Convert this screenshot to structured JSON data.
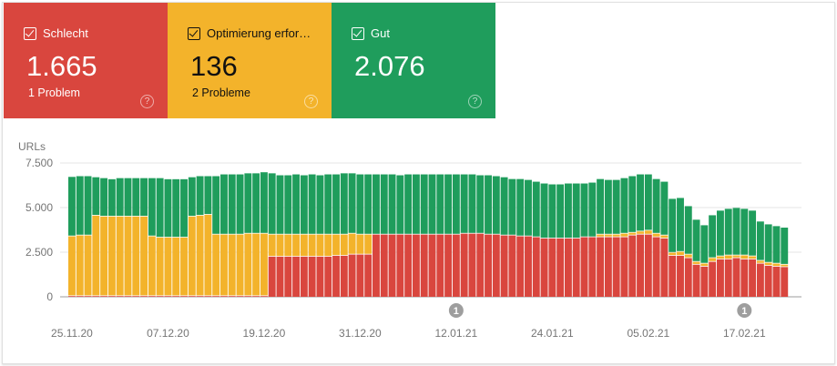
{
  "cards": [
    {
      "label": "Schlecht",
      "value": "1.665",
      "sub": "1 Problem",
      "checked": true,
      "color": "#d9463e",
      "text_color": "#ffffff",
      "help_icon": "help-circle-icon"
    },
    {
      "label": "Optimierung erfor…",
      "value": "136",
      "sub": "2 Probleme",
      "checked": true,
      "color": "#f3b32b",
      "text_color": "#111111",
      "help_icon": "help-circle-icon"
    },
    {
      "label": "Gut",
      "value": "2.076",
      "sub": "",
      "checked": true,
      "color": "#1f9d5c",
      "text_color": "#ffffff",
      "help_icon": "help-circle-icon"
    }
  ],
  "chart_data": {
    "type": "bar",
    "stacked": true,
    "ylabel": "URLs",
    "ylim": [
      0,
      7500
    ],
    "yticks": [
      {
        "v": 0,
        "label": "0"
      },
      {
        "v": 2500,
        "label": "2.500"
      },
      {
        "v": 5000,
        "label": "5.000"
      },
      {
        "v": 7500,
        "label": "7.500"
      }
    ],
    "xtick_labels": [
      "25.11.20",
      "07.12.20",
      "19.12.20",
      "31.12.20",
      "12.01.21",
      "24.01.21",
      "05.02.21",
      "17.02.21"
    ],
    "grid": true,
    "categories": [
      "25.11.20",
      "26.11.20",
      "27.11.20",
      "28.11.20",
      "29.11.20",
      "30.11.20",
      "01.12.20",
      "02.12.20",
      "03.12.20",
      "04.12.20",
      "05.12.20",
      "06.12.20",
      "07.12.20",
      "08.12.20",
      "09.12.20",
      "10.12.20",
      "11.12.20",
      "12.12.20",
      "13.12.20",
      "14.12.20",
      "15.12.20",
      "16.12.20",
      "17.12.20",
      "18.12.20",
      "19.12.20",
      "20.12.20",
      "21.12.20",
      "22.12.20",
      "23.12.20",
      "24.12.20",
      "25.12.20",
      "26.12.20",
      "27.12.20",
      "28.12.20",
      "29.12.20",
      "30.12.20",
      "31.12.20",
      "01.01.21",
      "02.01.21",
      "03.01.21",
      "04.01.21",
      "05.01.21",
      "06.01.21",
      "07.01.21",
      "08.01.21",
      "09.01.21",
      "10.01.21",
      "11.01.21",
      "12.01.21",
      "13.01.21",
      "14.01.21",
      "15.01.21",
      "16.01.21",
      "17.01.21",
      "18.01.21",
      "19.01.21",
      "20.01.21",
      "21.01.21",
      "22.01.21",
      "23.01.21",
      "24.01.21",
      "25.01.21",
      "26.01.21",
      "27.01.21",
      "28.01.21",
      "29.01.21",
      "30.01.21",
      "31.01.21",
      "01.02.21",
      "02.02.21",
      "03.02.21",
      "04.02.21",
      "05.02.21",
      "06.02.21",
      "07.02.21",
      "08.02.21",
      "09.02.21",
      "10.02.21",
      "11.02.21",
      "12.02.21",
      "13.02.21",
      "14.02.21",
      "15.02.21",
      "16.02.21",
      "17.02.21",
      "18.02.21",
      "19.02.21",
      "20.02.21",
      "21.02.21",
      "22.02.21"
    ],
    "series": [
      {
        "name": "Schlecht",
        "color": "#d9463e",
        "values": [
          40,
          40,
          40,
          40,
          40,
          40,
          40,
          40,
          40,
          40,
          40,
          40,
          40,
          40,
          40,
          40,
          40,
          40,
          40,
          40,
          40,
          40,
          40,
          40,
          40,
          2250,
          2250,
          2250,
          2250,
          2250,
          2250,
          2250,
          2250,
          2300,
          2300,
          2370,
          2370,
          2370,
          3490,
          3490,
          3490,
          3490,
          3490,
          3490,
          3490,
          3490,
          3490,
          3490,
          3490,
          3540,
          3540,
          3540,
          3490,
          3490,
          3440,
          3440,
          3390,
          3390,
          3340,
          3270,
          3270,
          3270,
          3270,
          3270,
          3340,
          3340,
          3340,
          3340,
          3340,
          3340,
          3440,
          3490,
          3490,
          3340,
          3270,
          2300,
          2300,
          2170,
          1800,
          1690,
          1960,
          2100,
          2100,
          2170,
          2100,
          2100,
          1860,
          1740,
          1690,
          1665
        ]
      },
      {
        "name": "Optimierung erforderlich",
        "color": "#f3b32b",
        "values": [
          3350,
          3400,
          3400,
          4510,
          4460,
          4460,
          4460,
          4460,
          4460,
          4460,
          3350,
          3280,
          3280,
          3280,
          3280,
          4460,
          4510,
          4560,
          3450,
          3450,
          3450,
          3450,
          3500,
          3500,
          3500,
          1240,
          1240,
          1240,
          1240,
          1240,
          1240,
          1240,
          1240,
          1190,
          1190,
          1170,
          1120,
          1120,
          0,
          0,
          0,
          0,
          0,
          0,
          0,
          0,
          0,
          0,
          0,
          0,
          0,
          0,
          0,
          0,
          0,
          0,
          0,
          0,
          0,
          0,
          0,
          0,
          0,
          0,
          0,
          0,
          150,
          150,
          150,
          200,
          150,
          170,
          220,
          200,
          170,
          170,
          220,
          200,
          160,
          170,
          210,
          170,
          220,
          150,
          220,
          170,
          160,
          170,
          170,
          136
        ]
      },
      {
        "name": "Gut",
        "color": "#1f9d5c",
        "values": [
          3330,
          3320,
          3320,
          2150,
          2150,
          2090,
          2150,
          2150,
          2150,
          2150,
          3260,
          3330,
          3270,
          3270,
          3270,
          2200,
          2210,
          2160,
          3270,
          3370,
          3370,
          3370,
          3380,
          3380,
          3440,
          3430,
          3320,
          3320,
          3370,
          3320,
          3370,
          3320,
          3370,
          3370,
          3430,
          3380,
          3370,
          3370,
          3370,
          3370,
          3370,
          3320,
          3370,
          3370,
          3370,
          3370,
          3370,
          3370,
          3370,
          3320,
          3320,
          3270,
          3320,
          3270,
          3260,
          3160,
          3210,
          3160,
          3110,
          3080,
          3030,
          3030,
          3080,
          3080,
          3010,
          3060,
          3110,
          3060,
          3060,
          3110,
          3170,
          3200,
          3150,
          3060,
          3010,
          3020,
          3020,
          2710,
          2360,
          2150,
          2400,
          2560,
          2610,
          2660,
          2610,
          2560,
          2200,
          2150,
          2100,
          2076
        ]
      }
    ],
    "annotations": [
      {
        "date": "12.01.21",
        "label": "1"
      },
      {
        "date": "17.02.21",
        "label": "1"
      }
    ],
    "annotation_color": "#9e9e9e"
  }
}
